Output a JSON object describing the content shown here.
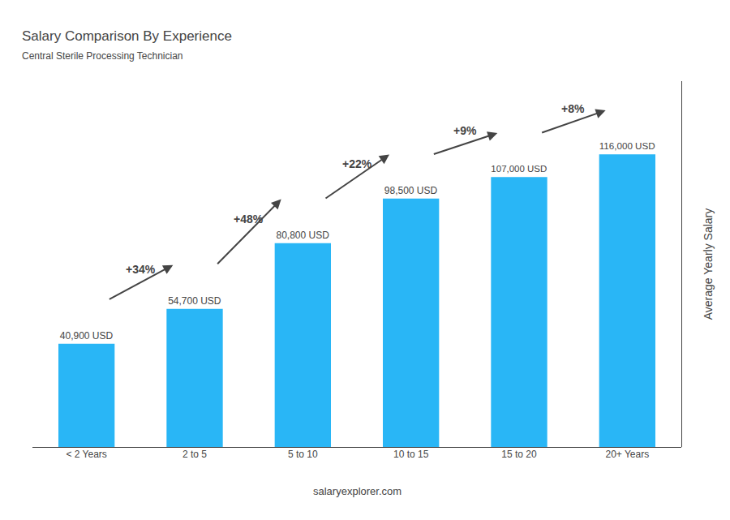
{
  "chart_data": {
    "type": "bar",
    "title": "Salary Comparison By Experience",
    "subtitle": "Central Sterile Processing Technician",
    "categories": [
      "< 2 Years",
      "2 to 5",
      "5 to 10",
      "10 to 15",
      "15 to 20",
      "20+ Years"
    ],
    "values": [
      40900,
      54700,
      80800,
      98500,
      107000,
      116000
    ],
    "value_labels": [
      "40,900 USD",
      "54,700 USD",
      "80,800 USD",
      "98,500 USD",
      "107,000 USD",
      "116,000 USD"
    ],
    "data_labels": true,
    "color": "#29b6f6",
    "ylabel": "Average Yearly Salary",
    "ylim": [
      0,
      145000
    ],
    "yticks": [],
    "tick_labels": "x",
    "grid": false,
    "growth_labels": [
      "+34%",
      "+48%",
      "+22%",
      "+9%",
      "+8%"
    ],
    "footer": "salaryexplorer.com"
  }
}
